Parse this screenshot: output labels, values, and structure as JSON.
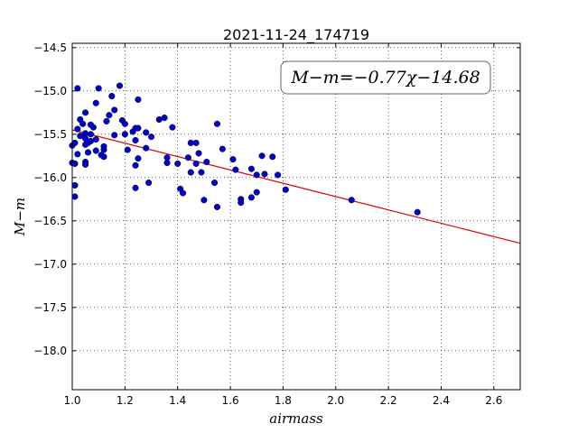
{
  "chart_data": {
    "type": "scatter",
    "title": "2021-11-24_174719",
    "xlabel": "airmass",
    "ylabel": "M−m",
    "xlim": [
      1.0,
      2.7
    ],
    "ylim": [
      -18.45,
      -14.45
    ],
    "y_inverted": true,
    "grid": true,
    "x_ticks": [
      "1.0",
      "1.2",
      "1.4",
      "1.6",
      "1.8",
      "2.0",
      "2.2",
      "2.4",
      "2.6"
    ],
    "y_ticks": [
      "−14.5",
      "−15.0",
      "−15.5",
      "−16.0",
      "−16.5",
      "−17.0",
      "−17.5",
      "−18.0"
    ],
    "annotation": "M−m=−0.77χ−14.68",
    "fit": {
      "slope": -0.77,
      "intercept": -14.68
    },
    "colors": {
      "points": "#0000cc",
      "fit_line": "#dd0000"
    },
    "points": [
      [
        1.02,
        -14.97
      ],
      [
        1.03,
        -15.33
      ],
      [
        1.02,
        -15.44
      ],
      [
        1.03,
        -15.52
      ],
      [
        1.05,
        -15.25
      ],
      [
        1.04,
        -15.38
      ],
      [
        1.01,
        -15.6
      ],
      [
        1.0,
        -15.63
      ],
      [
        1.02,
        -15.73
      ],
      [
        1.0,
        -15.83
      ],
      [
        1.01,
        -15.84
      ],
      [
        1.01,
        -16.09
      ],
      [
        1.01,
        -16.22
      ],
      [
        1.05,
        -15.49
      ],
      [
        1.05,
        -15.55
      ],
      [
        1.05,
        -15.62
      ],
      [
        1.06,
        -15.71
      ],
      [
        1.06,
        -15.6
      ],
      [
        1.05,
        -15.82
      ],
      [
        1.05,
        -15.85
      ],
      [
        1.07,
        -15.39
      ],
      [
        1.08,
        -15.42
      ],
      [
        1.07,
        -15.5
      ],
      [
        1.07,
        -15.58
      ],
      [
        1.09,
        -15.14
      ],
      [
        1.1,
        -14.97
      ],
      [
        1.09,
        -15.56
      ],
      [
        1.09,
        -15.69
      ],
      [
        1.11,
        -15.74
      ],
      [
        1.12,
        -15.76
      ],
      [
        1.12,
        -15.64
      ],
      [
        1.12,
        -15.68
      ],
      [
        1.13,
        -15.35
      ],
      [
        1.14,
        -15.28
      ],
      [
        1.15,
        -15.06
      ],
      [
        1.16,
        -15.22
      ],
      [
        1.16,
        -15.51
      ],
      [
        1.18,
        -14.94
      ],
      [
        1.19,
        -15.34
      ],
      [
        1.2,
        -15.38
      ],
      [
        1.2,
        -15.5
      ],
      [
        1.21,
        -15.68
      ],
      [
        1.23,
        -15.47
      ],
      [
        1.24,
        -15.43
      ],
      [
        1.25,
        -15.43
      ],
      [
        1.24,
        -15.57
      ],
      [
        1.25,
        -15.78
      ],
      [
        1.24,
        -15.86
      ],
      [
        1.24,
        -16.12
      ],
      [
        1.25,
        -15.1
      ],
      [
        1.28,
        -15.48
      ],
      [
        1.28,
        -15.66
      ],
      [
        1.3,
        -15.53
      ],
      [
        1.29,
        -16.06
      ],
      [
        1.33,
        -15.33
      ],
      [
        1.35,
        -15.31
      ],
      [
        1.36,
        -15.77
      ],
      [
        1.36,
        -15.83
      ],
      [
        1.38,
        -15.42
      ],
      [
        1.4,
        -15.84
      ],
      [
        1.41,
        -16.13
      ],
      [
        1.42,
        -16.18
      ],
      [
        1.44,
        -15.77
      ],
      [
        1.45,
        -15.6
      ],
      [
        1.45,
        -15.94
      ],
      [
        1.47,
        -15.6
      ],
      [
        1.48,
        -15.72
      ],
      [
        1.47,
        -15.84
      ],
      [
        1.49,
        -15.94
      ],
      [
        1.5,
        -16.26
      ],
      [
        1.51,
        -15.82
      ],
      [
        1.54,
        -16.06
      ],
      [
        1.55,
        -15.38
      ],
      [
        1.55,
        -16.34
      ],
      [
        1.57,
        -15.67
      ],
      [
        1.61,
        -15.79
      ],
      [
        1.62,
        -15.91
      ],
      [
        1.64,
        -16.25
      ],
      [
        1.64,
        -16.29
      ],
      [
        1.68,
        -15.9
      ],
      [
        1.68,
        -16.23
      ],
      [
        1.7,
        -16.17
      ],
      [
        1.7,
        -15.97
      ],
      [
        1.72,
        -15.75
      ],
      [
        1.73,
        -15.96
      ],
      [
        1.76,
        -15.76
      ],
      [
        1.78,
        -15.97
      ],
      [
        1.81,
        -16.14
      ],
      [
        2.06,
        -16.26
      ],
      [
        2.31,
        -16.4
      ]
    ]
  }
}
